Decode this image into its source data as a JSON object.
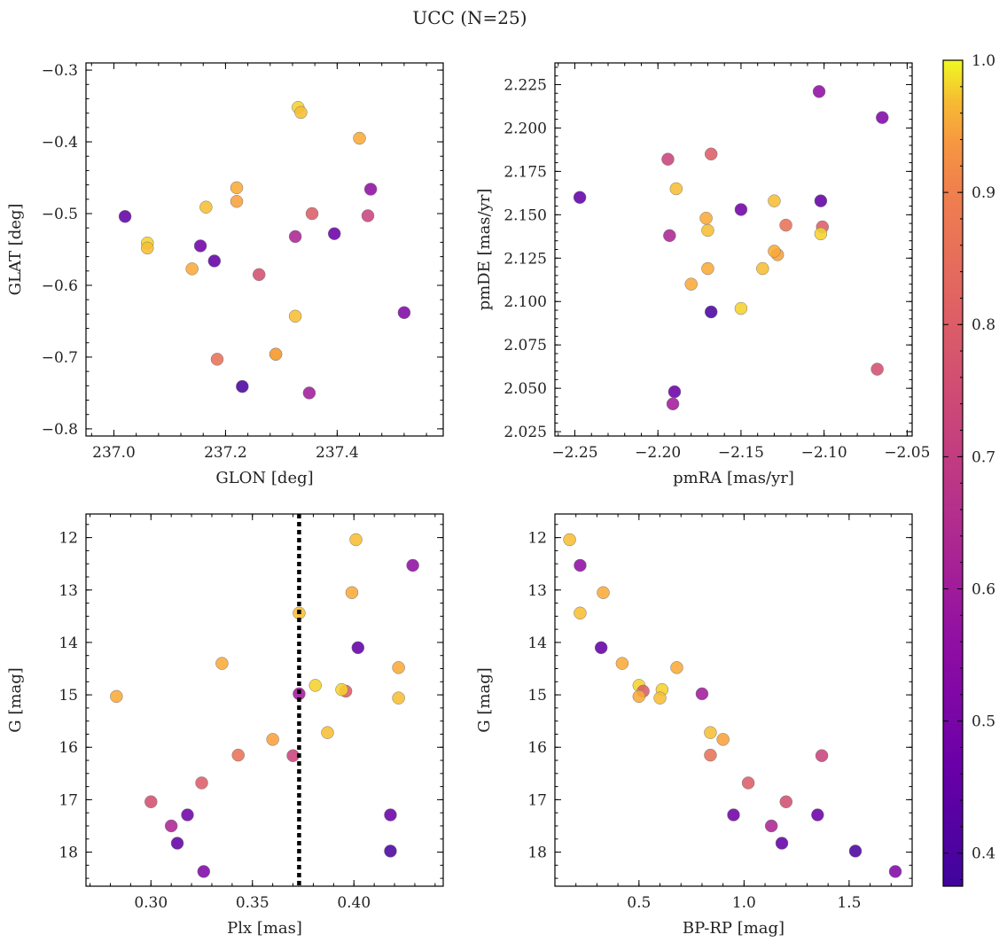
{
  "figure": {
    "title": "UCC (N=25)",
    "colormap": "plasma",
    "colorbar": {
      "min": 0.375,
      "max": 1.0,
      "ticks": [
        0.4,
        0.5,
        0.6,
        0.7,
        0.8,
        0.9,
        1.0
      ],
      "tick_labels": [
        "0.4",
        "0.5",
        "0.6",
        "0.7",
        "0.8",
        "0.9",
        "1.0"
      ]
    },
    "marker_edge_color": "#777777",
    "guide_line_color": "#000000"
  },
  "stars": [
    {
      "glon": 237.02,
      "glat": -0.504,
      "pmra": -2.102,
      "pmde": 2.158,
      "plx": 0.402,
      "g": 14.1,
      "bprp": 0.32,
      "p": 0.45
    },
    {
      "glon": 237.06,
      "glat": -0.541,
      "pmra": -2.15,
      "pmde": 2.096,
      "plx": 0.381,
      "g": 14.82,
      "bprp": 0.5,
      "p": 0.98
    },
    {
      "glon": 237.06,
      "glat": -0.548,
      "pmra": -2.13,
      "pmde": 2.158,
      "plx": 0.387,
      "g": 15.72,
      "bprp": 0.84,
      "p": 0.97
    },
    {
      "glon": 237.14,
      "glat": -0.577,
      "pmra": -2.18,
      "pmde": 2.11,
      "plx": 0.422,
      "g": 14.48,
      "bprp": 0.68,
      "p": 0.96
    },
    {
      "glon": 237.155,
      "glat": -0.545,
      "pmra": -2.15,
      "pmde": 2.153,
      "plx": 0.318,
      "g": 17.29,
      "bprp": 0.95,
      "p": 0.48
    },
    {
      "glon": 237.165,
      "glat": -0.491,
      "pmra": -2.17,
      "pmde": 2.141,
      "plx": 0.401,
      "g": 12.04,
      "bprp": 0.17,
      "p": 0.97
    },
    {
      "glon": 237.18,
      "glat": -0.566,
      "pmra": -2.247,
      "pmde": 2.16,
      "plx": 0.313,
      "g": 17.83,
      "bprp": 1.18,
      "p": 0.45
    },
    {
      "glon": 237.185,
      "glat": -0.703,
      "pmra": -2.123,
      "pmde": 2.144,
      "plx": 0.343,
      "g": 16.15,
      "bprp": 0.84,
      "p": 0.86
    },
    {
      "glon": 237.22,
      "glat": -0.464,
      "pmra": -2.17,
      "pmde": 2.119,
      "plx": 0.335,
      "g": 14.4,
      "bprp": 0.42,
      "p": 0.96
    },
    {
      "glon": 237.22,
      "glat": -0.483,
      "pmra": -2.128,
      "pmde": 2.127,
      "plx": 0.36,
      "g": 15.85,
      "bprp": 0.9,
      "p": 0.95
    },
    {
      "glon": 237.23,
      "glat": -0.741,
      "pmra": -2.168,
      "pmde": 2.094,
      "plx": 0.418,
      "g": 17.98,
      "bprp": 1.53,
      "p": 0.4
    },
    {
      "glon": 237.26,
      "glat": -0.585,
      "pmra": -2.068,
      "pmde": 2.061,
      "plx": 0.3,
      "g": 17.04,
      "bprp": 1.2,
      "p": 0.76
    },
    {
      "glon": 237.29,
      "glat": -0.696,
      "pmra": -2.101,
      "pmde": 2.143,
      "plx": 0.396,
      "g": 14.93,
      "bprp": 0.52,
      "p": 0.8
    },
    {
      "glon": 237.29,
      "glat": -0.696,
      "pmra": -2.171,
      "pmde": 2.148,
      "plx": 0.399,
      "g": 13.05,
      "bprp": 0.33,
      "p": 0.96
    },
    {
      "glon": 237.325,
      "glat": -0.643,
      "pmra": -2.189,
      "pmde": 2.165,
      "plx": 0.373,
      "g": 13.44,
      "bprp": 0.22,
      "p": 0.97
    },
    {
      "glon": 237.325,
      "glat": -0.532,
      "pmra": -2.193,
      "pmde": 2.138,
      "plx": 0.31,
      "g": 17.5,
      "bprp": 1.13,
      "p": 0.63
    },
    {
      "glon": 237.33,
      "glat": -0.352,
      "pmra": -2.102,
      "pmde": 2.139,
      "plx": 0.394,
      "g": 14.9,
      "bprp": 0.61,
      "p": 0.98
    },
    {
      "glon": 237.335,
      "glat": -0.359,
      "pmra": -2.137,
      "pmde": 2.119,
      "plx": 0.422,
      "g": 15.06,
      "bprp": 0.6,
      "p": 0.97
    },
    {
      "glon": 237.35,
      "glat": -0.75,
      "pmra": -2.191,
      "pmde": 2.041,
      "plx": 0.373,
      "g": 14.98,
      "bprp": 0.8,
      "p": 0.6
    },
    {
      "glon": 237.355,
      "glat": -0.5,
      "pmra": -2.168,
      "pmde": 2.185,
      "plx": 0.325,
      "g": 16.68,
      "bprp": 1.02,
      "p": 0.8
    },
    {
      "glon": 237.395,
      "glat": -0.528,
      "pmra": -2.19,
      "pmde": 2.048,
      "plx": 0.418,
      "g": 17.29,
      "bprp": 1.35,
      "p": 0.47
    },
    {
      "glon": 237.44,
      "glat": -0.395,
      "pmra": -2.13,
      "pmde": 2.129,
      "plx": 0.283,
      "g": 15.03,
      "bprp": 0.5,
      "p": 0.96
    },
    {
      "glon": 237.455,
      "glat": -0.503,
      "pmra": -2.194,
      "pmde": 2.182,
      "plx": 0.37,
      "g": 16.16,
      "bprp": 1.37,
      "p": 0.72
    },
    {
      "glon": 237.46,
      "glat": -0.466,
      "pmra": -2.103,
      "pmde": 2.221,
      "plx": 0.429,
      "g": 12.53,
      "bprp": 0.22,
      "p": 0.56
    },
    {
      "glon": 237.52,
      "glat": -0.638,
      "pmra": -2.065,
      "pmde": 2.206,
      "plx": 0.326,
      "g": 18.37,
      "bprp": 1.72,
      "p": 0.52
    }
  ],
  "chart_data": [
    {
      "type": "scatter",
      "title": "",
      "xlabel": "GLON [deg]",
      "ylabel": "GLAT [deg]",
      "x_field": "glon",
      "y_field": "glat",
      "xlim": [
        236.95,
        237.59
      ],
      "ylim": [
        -0.81,
        -0.29
      ],
      "xticks": [
        237.0,
        237.2,
        237.4
      ],
      "xtick_labels": [
        "237.0",
        "237.2",
        "237.4"
      ],
      "yticks": [
        -0.8,
        -0.7,
        -0.6,
        -0.5,
        -0.4,
        -0.3
      ],
      "ytick_labels": [
        "−0.8",
        "−0.7",
        "−0.6",
        "−0.5",
        "−0.4",
        "−0.3"
      ],
      "y_inverted": false,
      "grid": false,
      "color_field": "p"
    },
    {
      "type": "scatter",
      "title": "",
      "xlabel": "pmRA [mas/yr]",
      "ylabel": "pmDE [mas/yr]",
      "x_field": "pmra",
      "y_field": "pmde",
      "xlim": [
        -2.262,
        -2.047
      ],
      "ylim": [
        2.0225,
        2.2375
      ],
      "xticks": [
        -2.25,
        -2.2,
        -2.15,
        -2.1,
        -2.05
      ],
      "xtick_labels": [
        "−2.25",
        "−2.20",
        "−2.15",
        "−2.10",
        "−2.05"
      ],
      "yticks": [
        2.025,
        2.05,
        2.075,
        2.1,
        2.125,
        2.15,
        2.175,
        2.2,
        2.225
      ],
      "ytick_labels": [
        "2.025",
        "2.050",
        "2.075",
        "2.100",
        "2.125",
        "2.150",
        "2.175",
        "2.200",
        "2.225"
      ],
      "y_inverted": false,
      "grid": false,
      "color_field": "p"
    },
    {
      "type": "scatter",
      "title": "",
      "xlabel": "Plx [mas]",
      "ylabel": "G [mag]",
      "x_field": "plx",
      "y_field": "g",
      "xlim": [
        0.268,
        0.444
      ],
      "ylim": [
        11.55,
        18.65
      ],
      "xticks": [
        0.3,
        0.35,
        0.4
      ],
      "xtick_labels": [
        "0.30",
        "0.35",
        "0.40"
      ],
      "yticks": [
        12,
        13,
        14,
        15,
        16,
        17,
        18
      ],
      "ytick_labels": [
        "12",
        "13",
        "14",
        "15",
        "16",
        "17",
        "18"
      ],
      "y_inverted": true,
      "grid": false,
      "color_field": "p",
      "vline": 0.373
    },
    {
      "type": "scatter",
      "title": "",
      "xlabel": "BP-RP [mag]",
      "ylabel": "G [mag]",
      "x_field": "bprp",
      "y_field": "g",
      "xlim": [
        0.1,
        1.8
      ],
      "ylim": [
        11.55,
        18.65
      ],
      "xticks": [
        0.5,
        1.0,
        1.5
      ],
      "xtick_labels": [
        "0.5",
        "1.0",
        "1.5"
      ],
      "yticks": [
        12,
        13,
        14,
        15,
        16,
        17,
        18
      ],
      "ytick_labels": [
        "12",
        "13",
        "14",
        "15",
        "16",
        "17",
        "18"
      ],
      "y_inverted": true,
      "grid": false,
      "color_field": "p"
    }
  ]
}
